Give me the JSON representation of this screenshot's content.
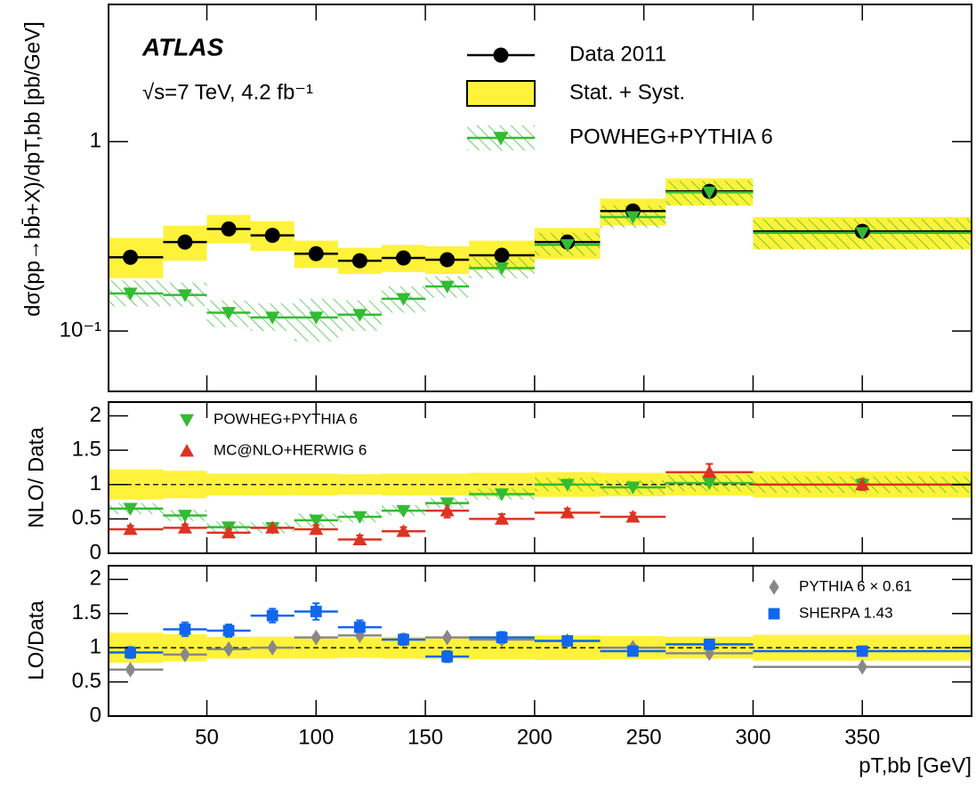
{
  "chart_data": [
    {
      "type": "errorbar",
      "ylog": true,
      "title": "ATLAS",
      "subtitle": "√s=7 TeV, 4.2 fb⁻¹",
      "y_label": "dσ(pp→bb̄+X)/dpT,bb [pb/GeV]",
      "ylim": [
        0.048,
        5.3
      ],
      "yticks": [
        {
          "value": 0.1,
          "label": "10⁻¹"
        },
        1
      ],
      "bins": [
        5,
        30,
        50,
        70,
        90,
        110,
        130,
        150,
        170,
        200,
        230,
        260,
        300,
        400
      ],
      "x": [
        15,
        40,
        60,
        80,
        100,
        120,
        140,
        160,
        185,
        215,
        245,
        280,
        350
      ],
      "series": [
        {
          "name": "Data 2011",
          "color": "#000000",
          "marker": "circle",
          "values": [
            0.245,
            0.295,
            0.346,
            0.32,
            0.256,
            0.235,
            0.243,
            0.238,
            0.251,
            0.295,
            0.43,
            0.546,
            0.336
          ]
        },
        {
          "name": "Stat. + Syst.",
          "color": "#fff23a",
          "band_low": [
            0.19,
            0.235,
            0.29,
            0.265,
            0.215,
            0.2,
            0.205,
            0.2,
            0.21,
            0.24,
            0.36,
            0.46,
            0.27
          ],
          "band_high": [
            0.31,
            0.36,
            0.41,
            0.38,
            0.3,
            0.275,
            0.285,
            0.28,
            0.3,
            0.35,
            0.5,
            0.64,
            0.4
          ]
        },
        {
          "name": "POWHEG+PYTHIA 6",
          "color": "#33bb33",
          "marker": "triangle-down",
          "hatch": true,
          "values": [
            0.158,
            0.155,
            0.125,
            0.118,
            0.118,
            0.122,
            0.148,
            0.172,
            0.215,
            0.285,
            0.4,
            0.54,
            0.33
          ],
          "band_low": [
            0.135,
            0.135,
            0.105,
            0.1,
            0.088,
            0.1,
            0.125,
            0.15,
            0.19,
            0.25,
            0.35,
            0.46,
            0.27
          ],
          "band_high": [
            0.185,
            0.18,
            0.145,
            0.14,
            0.148,
            0.145,
            0.172,
            0.195,
            0.245,
            0.33,
            0.46,
            0.62,
            0.39
          ]
        }
      ]
    },
    {
      "type": "errorbar",
      "y_label": "NLO/ Data",
      "ylim": [
        0,
        2.2
      ],
      "yticks": [
        0,
        0.5,
        1,
        1.5,
        2
      ],
      "refline": 1,
      "bins": [
        5,
        30,
        50,
        70,
        90,
        110,
        130,
        150,
        170,
        200,
        230,
        260,
        300,
        400
      ],
      "x": [
        15,
        40,
        60,
        80,
        100,
        120,
        140,
        160,
        185,
        215,
        245,
        280,
        350
      ],
      "series": [
        {
          "color": "#fff23a",
          "band_low": [
            0.78,
            0.8,
            0.84,
            0.84,
            0.84,
            0.85,
            0.84,
            0.84,
            0.83,
            0.82,
            0.83,
            0.84,
            0.81
          ],
          "band_high": [
            1.22,
            1.2,
            1.16,
            1.16,
            1.16,
            1.15,
            1.16,
            1.16,
            1.17,
            1.18,
            1.17,
            1.16,
            1.19
          ]
        },
        {
          "name": "POWHEG+PYTHIA 6",
          "color": "#33bb33",
          "marker": "triangle-down",
          "hatch": true,
          "values": [
            0.65,
            0.55,
            0.38,
            0.37,
            0.48,
            0.53,
            0.62,
            0.73,
            0.86,
            1.0,
            0.96,
            1.02,
            1.0
          ],
          "band_low": [
            0.57,
            0.47,
            0.3,
            0.29,
            0.38,
            0.45,
            0.55,
            0.66,
            0.78,
            0.9,
            0.86,
            0.9,
            0.88
          ],
          "band_high": [
            0.73,
            0.63,
            0.46,
            0.45,
            0.58,
            0.61,
            0.7,
            0.8,
            0.94,
            1.1,
            1.06,
            1.14,
            1.12
          ]
        },
        {
          "name": "MC@NLO+HERWIG 6",
          "color": "#dd3322",
          "marker": "triangle-up",
          "values": [
            0.35,
            0.37,
            0.3,
            0.37,
            0.35,
            0.2,
            0.32,
            0.62,
            0.5,
            0.59,
            0.53,
            1.18,
            1.0
          ],
          "errors": [
            0.05,
            0.05,
            0.05,
            0.05,
            0.06,
            0.06,
            0.06,
            0.1,
            0.07,
            0.06,
            0.06,
            0.12,
            0.08
          ]
        }
      ]
    },
    {
      "type": "errorbar",
      "y_label": "LO/Data",
      "x_label": "pT,bb [GeV]",
      "xlim": [
        5,
        400
      ],
      "xticks": [
        50,
        100,
        150,
        200,
        250,
        300,
        350
      ],
      "ylim": [
        0,
        2.2
      ],
      "yticks": [
        0,
        0.5,
        1,
        1.5,
        2
      ],
      "refline": 1,
      "bins": [
        5,
        30,
        50,
        70,
        90,
        110,
        130,
        150,
        170,
        200,
        230,
        260,
        300,
        400
      ],
      "x": [
        15,
        40,
        60,
        80,
        100,
        120,
        140,
        160,
        185,
        215,
        245,
        280,
        350
      ],
      "series": [
        {
          "color": "#fff23a",
          "band_low": [
            0.78,
            0.8,
            0.84,
            0.84,
            0.84,
            0.85,
            0.84,
            0.84,
            0.83,
            0.82,
            0.83,
            0.84,
            0.81
          ],
          "band_high": [
            1.22,
            1.2,
            1.16,
            1.16,
            1.16,
            1.15,
            1.16,
            1.16,
            1.17,
            1.18,
            1.17,
            1.16,
            1.19
          ]
        },
        {
          "name": "PYTHIA 6 × 0.61",
          "color": "#888888",
          "marker": "diamond",
          "values": [
            0.68,
            0.9,
            0.98,
            1.0,
            1.15,
            1.18,
            1.12,
            1.15,
            1.12,
            1.1,
            1.0,
            0.92,
            0.72
          ],
          "errors": [
            0.04,
            0.03,
            0.03,
            0.03,
            0.03,
            0.03,
            0.03,
            0.03,
            0.03,
            0.03,
            0.03,
            0.03,
            0.03
          ]
        },
        {
          "name": "SHERPA 1.43",
          "color": "#1166ee",
          "marker": "square",
          "values": [
            0.93,
            1.27,
            1.25,
            1.47,
            1.53,
            1.3,
            1.12,
            0.87,
            1.15,
            1.1,
            0.95,
            1.05,
            0.95
          ],
          "errors": [
            0.08,
            0.1,
            0.09,
            0.1,
            0.12,
            0.1,
            0.08,
            0.08,
            0.08,
            0.06,
            0.06,
            0.05,
            0.05
          ]
        }
      ]
    }
  ]
}
